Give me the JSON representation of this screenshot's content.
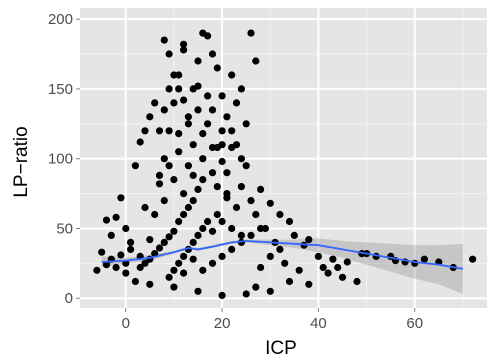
{
  "chart_data": {
    "type": "scatter",
    "title": "",
    "xlabel": "ICP",
    "ylabel": "LP−ratio",
    "xlim": [
      -9.5,
      75
    ],
    "ylim": [
      -7,
      208
    ],
    "x_ticks": [
      0,
      20,
      40,
      60
    ],
    "y_ticks": [
      0,
      50,
      100,
      150,
      200
    ],
    "x_tick_labels": [
      "0",
      "20",
      "40",
      "60"
    ],
    "y_tick_labels": [
      "0",
      "50",
      "100",
      "150",
      "200"
    ],
    "grid": true,
    "background": "#e5e5e5",
    "point_color": "#000000",
    "smooth_color": "#3366ff",
    "ribbon_color": "#999999",
    "points": [
      [
        -6,
        20
      ],
      [
        -5,
        33
      ],
      [
        -4,
        24
      ],
      [
        -3,
        28
      ],
      [
        -2,
        22
      ],
      [
        -1,
        31
      ],
      [
        0,
        25
      ],
      [
        1,
        35
      ],
      [
        -2,
        58
      ],
      [
        -3,
        45
      ],
      [
        -1,
        72
      ],
      [
        0,
        50
      ],
      [
        -4,
        56
      ],
      [
        3,
        112
      ],
      [
        2,
        95
      ],
      [
        4,
        65
      ],
      [
        0,
        18
      ],
      [
        1,
        40
      ],
      [
        3,
        30
      ],
      [
        5,
        42
      ],
      [
        6,
        60
      ],
      [
        7,
        82
      ],
      [
        8,
        100
      ],
      [
        9,
        120
      ],
      [
        10,
        140
      ],
      [
        11,
        160
      ],
      [
        12,
        178
      ],
      [
        13,
        130
      ],
      [
        14,
        150
      ],
      [
        15,
        170
      ],
      [
        16,
        190
      ],
      [
        8,
        185
      ],
      [
        9,
        175
      ],
      [
        10,
        160
      ],
      [
        11,
        150
      ],
      [
        12,
        182
      ],
      [
        17,
        188
      ],
      [
        18,
        175
      ],
      [
        19,
        165
      ],
      [
        20,
        145
      ],
      [
        21,
        130
      ],
      [
        22,
        120
      ],
      [
        23,
        110
      ],
      [
        24,
        100
      ],
      [
        25,
        125
      ],
      [
        26,
        190
      ],
      [
        27,
        170
      ],
      [
        24,
        150
      ],
      [
        23,
        140
      ],
      [
        22,
        160
      ],
      [
        6,
        140
      ],
      [
        5,
        130
      ],
      [
        4,
        120
      ],
      [
        7,
        120
      ],
      [
        8,
        135
      ],
      [
        9,
        150
      ],
      [
        12,
        142
      ],
      [
        15,
        152
      ],
      [
        18,
        135
      ],
      [
        20,
        120
      ],
      [
        22,
        108
      ],
      [
        25,
        95
      ],
      [
        28,
        78
      ],
      [
        30,
        68
      ],
      [
        32,
        60
      ],
      [
        34,
        55
      ],
      [
        35,
        45
      ],
      [
        37,
        38
      ],
      [
        38,
        42
      ],
      [
        40,
        30
      ],
      [
        41,
        22
      ],
      [
        42,
        18
      ],
      [
        43,
        28
      ],
      [
        44,
        22
      ],
      [
        45,
        15
      ],
      [
        46,
        26
      ],
      [
        48,
        12
      ],
      [
        49,
        32
      ],
      [
        50,
        32
      ],
      [
        52,
        30
      ],
      [
        55,
        30
      ],
      [
        56,
        27
      ],
      [
        58,
        26
      ],
      [
        60,
        25
      ],
      [
        62,
        28
      ],
      [
        65,
        26
      ],
      [
        68,
        22
      ],
      [
        72,
        28
      ],
      [
        36,
        20
      ],
      [
        38,
        10
      ],
      [
        34,
        12
      ],
      [
        30,
        5
      ],
      [
        27,
        8
      ],
      [
        25,
        3
      ],
      [
        20,
        2
      ],
      [
        15,
        5
      ],
      [
        10,
        8
      ],
      [
        5,
        10
      ],
      [
        2,
        12
      ],
      [
        28,
        22
      ],
      [
        30,
        30
      ],
      [
        32,
        35
      ],
      [
        33,
        25
      ],
      [
        31,
        40
      ],
      [
        29,
        50
      ],
      [
        27,
        60
      ],
      [
        26,
        70
      ],
      [
        24,
        80
      ],
      [
        21,
        90
      ],
      [
        13,
        95
      ],
      [
        11,
        105
      ],
      [
        14,
        110
      ],
      [
        16,
        118
      ],
      [
        17,
        125
      ],
      [
        19,
        108
      ],
      [
        20,
        98
      ],
      [
        18,
        90
      ],
      [
        16,
        85
      ],
      [
        15,
        78
      ],
      [
        14,
        70
      ],
      [
        13,
        65
      ],
      [
        12,
        60
      ],
      [
        11,
        55
      ],
      [
        10,
        48
      ],
      [
        9,
        44
      ],
      [
        8,
        40
      ],
      [
        7,
        36
      ],
      [
        6,
        32
      ],
      [
        5,
        28
      ],
      [
        4,
        25
      ],
      [
        3,
        22
      ],
      [
        21,
        72
      ],
      [
        23,
        65
      ],
      [
        19,
        60
      ],
      [
        17,
        55
      ],
      [
        16,
        50
      ],
      [
        15,
        45
      ],
      [
        14,
        40
      ],
      [
        13,
        35
      ],
      [
        12,
        30
      ],
      [
        11,
        25
      ],
      [
        10,
        20
      ],
      [
        9,
        15
      ],
      [
        16,
        20
      ],
      [
        18,
        25
      ],
      [
        20,
        30
      ],
      [
        22,
        35
      ],
      [
        24,
        40
      ],
      [
        26,
        45
      ],
      [
        28,
        50
      ],
      [
        14,
        28
      ],
      [
        12,
        18
      ],
      [
        18,
        48
      ],
      [
        20,
        55
      ],
      [
        22,
        50
      ],
      [
        24,
        45
      ],
      [
        10,
        85
      ],
      [
        8,
        70
      ],
      [
        12,
        75
      ],
      [
        14,
        88
      ],
      [
        16,
        100
      ],
      [
        18,
        108
      ],
      [
        20,
        110
      ],
      [
        13,
        125
      ],
      [
        15,
        135
      ],
      [
        17,
        145
      ],
      [
        11,
        118
      ],
      [
        9,
        95
      ],
      [
        7,
        88
      ],
      [
        19,
        80
      ],
      [
        21,
        75
      ]
    ],
    "smooth": [
      [
        -5,
        26
      ],
      [
        0,
        27
      ],
      [
        5,
        29
      ],
      [
        10,
        33
      ],
      [
        13,
        36
      ],
      [
        15,
        35
      ],
      [
        18,
        37
      ],
      [
        22,
        40
      ],
      [
        25,
        41
      ],
      [
        30,
        40
      ],
      [
        35,
        39
      ],
      [
        40,
        38
      ],
      [
        45,
        35
      ],
      [
        50,
        32
      ],
      [
        55,
        29
      ],
      [
        60,
        26
      ],
      [
        65,
        24
      ],
      [
        70,
        21
      ]
    ],
    "ribbon_upper": [
      [
        -5,
        30
      ],
      [
        0,
        29
      ],
      [
        5,
        31
      ],
      [
        10,
        34
      ],
      [
        13,
        37
      ],
      [
        15,
        36
      ],
      [
        18,
        38
      ],
      [
        22,
        41
      ],
      [
        25,
        42
      ],
      [
        30,
        42
      ],
      [
        35,
        42
      ],
      [
        40,
        43
      ],
      [
        45,
        41
      ],
      [
        50,
        40
      ],
      [
        55,
        39
      ],
      [
        60,
        38
      ],
      [
        65,
        38
      ],
      [
        70,
        39
      ]
    ],
    "ribbon_lower": [
      [
        -5,
        22
      ],
      [
        0,
        25
      ],
      [
        5,
        27
      ],
      [
        10,
        32
      ],
      [
        13,
        35
      ],
      [
        15,
        34
      ],
      [
        18,
        36
      ],
      [
        22,
        39
      ],
      [
        25,
        40
      ],
      [
        30,
        38
      ],
      [
        35,
        36
      ],
      [
        40,
        33
      ],
      [
        45,
        29
      ],
      [
        50,
        24
      ],
      [
        55,
        19
      ],
      [
        60,
        14
      ],
      [
        65,
        10
      ],
      [
        70,
        3
      ]
    ]
  }
}
